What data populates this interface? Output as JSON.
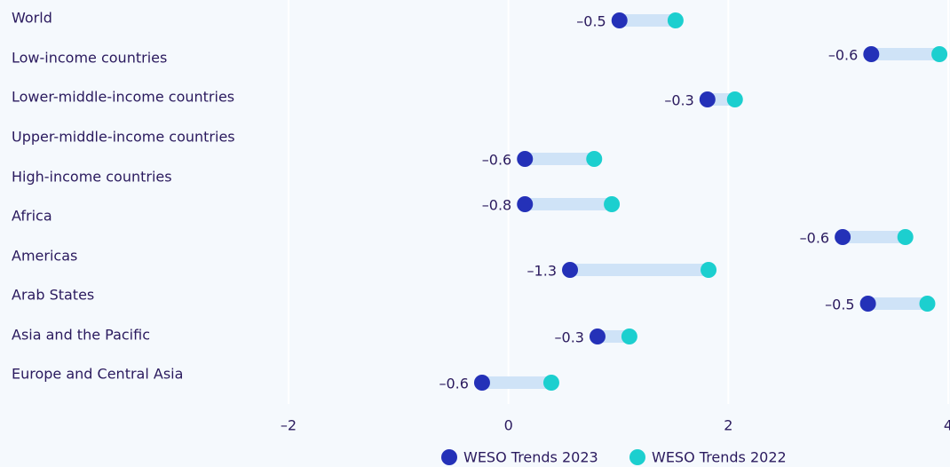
{
  "chart_data": {
    "type": "dumbbell",
    "categories": [
      "World",
      "Low-income countries",
      "Lower-middle-income countries",
      "Upper-middle-income countries",
      "High-income countries",
      "Africa",
      "Americas",
      "Arab States",
      "Asia and the Pacific",
      "Europe and Central Asia"
    ],
    "series": [
      {
        "name": "WESO Trends 2023",
        "color": "#2431b8",
        "values": [
          1.01,
          3.3,
          1.81,
          0.15,
          0.15,
          3.04,
          0.56,
          3.27,
          0.81,
          -0.24
        ]
      },
      {
        "name": "WESO Trends 2022",
        "color": "#1ccfcf",
        "values": [
          1.52,
          3.92,
          2.06,
          0.78,
          0.94,
          3.61,
          1.82,
          3.81,
          1.1,
          0.39
        ]
      }
    ],
    "differences": {
      "values": [
        -0.5,
        -0.6,
        -0.3,
        -0.6,
        -0.8,
        -0.6,
        -1.3,
        -0.5,
        -0.3,
        -0.6
      ],
      "value_labels": [
        "–0.5",
        "–0.6",
        "–0.3",
        "–0.6",
        "–0.8",
        "–0.6",
        "–1.3",
        "–0.5",
        "–0.3",
        "–0.6"
      ]
    },
    "connector_color": "#cfe3f7",
    "xlim": [
      -2,
      4
    ],
    "xticks": [
      {
        "value": -2,
        "label": "–2"
      },
      0,
      2,
      4
    ],
    "grid": true
  }
}
